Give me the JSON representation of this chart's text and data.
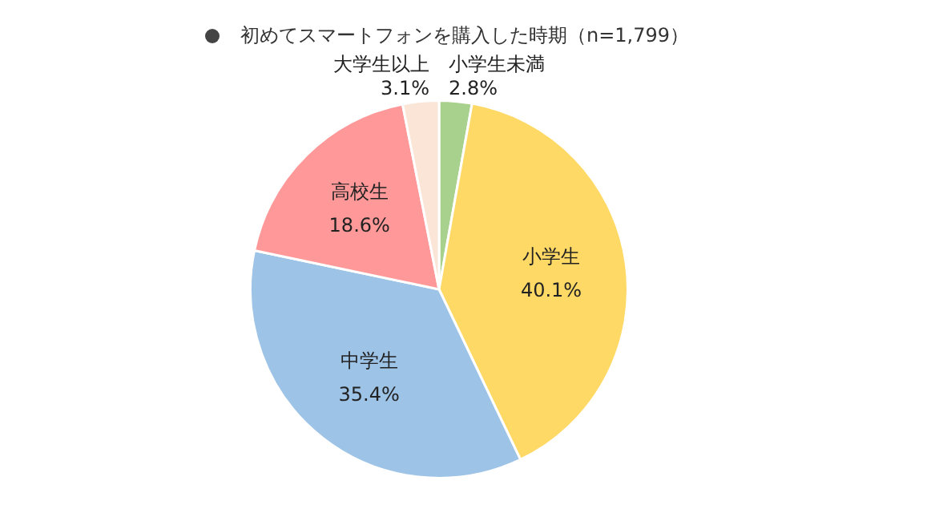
{
  "chart_data": {
    "type": "pie",
    "title": "初めてスマートフォンを購入した時期（n=1,799）",
    "categories": [
      "小学生未満",
      "小学生",
      "中学生",
      "高校生",
      "大学生以上"
    ],
    "values": [
      2.8,
      40.1,
      35.4,
      18.6,
      3.1
    ],
    "value_labels": [
      "2.8%",
      "40.1%",
      "35.4%",
      "18.6%",
      "3.1%"
    ],
    "colors": [
      "#a9d18e",
      "#ffd966",
      "#9dc3e6",
      "#ff9999",
      "#fbe5d6"
    ],
    "legend": false
  }
}
